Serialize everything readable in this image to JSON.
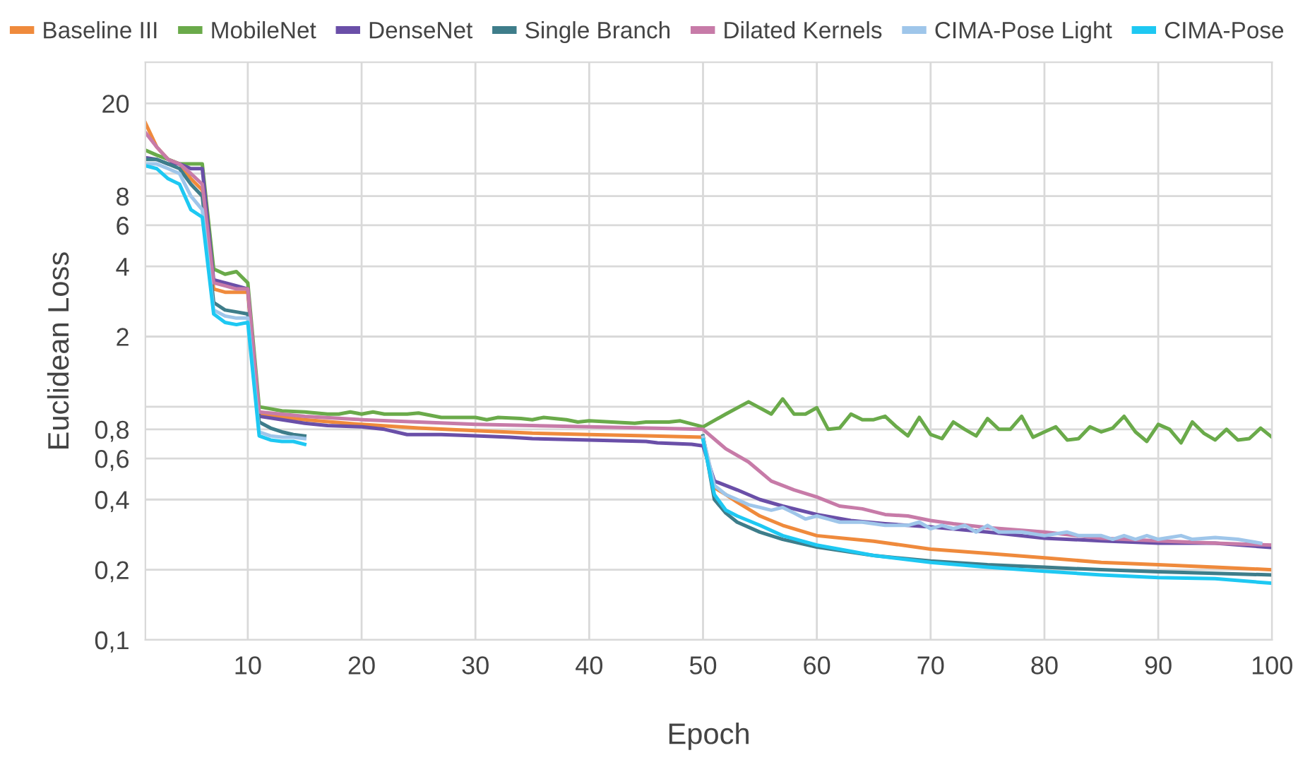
{
  "chart_data": {
    "type": "line",
    "xlabel": "Epoch",
    "ylabel": "Euclidean Loss",
    "log": "y",
    "grid": true,
    "legend": "top",
    "marker": "none",
    "line_style": "solid",
    "xlim": [
      1,
      100
    ],
    "xticks": [
      10,
      20,
      30,
      40,
      50,
      60,
      70,
      80,
      90,
      100
    ],
    "ylim": [
      0.1,
      30
    ],
    "yticks": [
      {
        "value": 0.1,
        "label": "0,1"
      },
      {
        "value": 0.2,
        "label": "0,2"
      },
      {
        "value": 0.4,
        "label": "0,4"
      },
      {
        "value": 0.6,
        "label": "0,6"
      },
      {
        "value": 0.8,
        "label": "0,8"
      },
      {
        "value": 1,
        "label": null
      },
      2,
      4,
      6,
      8,
      {
        "value": 10,
        "label": null
      },
      20
    ],
    "series": [
      {
        "name": "Baseline III",
        "color": "#ef8a3c",
        "x": [
          1,
          2,
          3,
          4,
          5,
          6,
          7,
          8,
          9,
          10,
          11,
          15,
          20,
          25,
          30,
          35,
          40,
          45,
          50,
          51,
          52,
          53,
          55,
          57,
          60,
          65,
          70,
          75,
          80,
          85,
          90,
          95,
          100
        ],
        "values": [
          16.5,
          13,
          11.5,
          11,
          9.5,
          8.5,
          3.2,
          3.1,
          3.1,
          3.1,
          0.93,
          0.88,
          0.84,
          0.81,
          0.79,
          0.77,
          0.76,
          0.75,
          0.74,
          0.45,
          0.42,
          0.39,
          0.34,
          0.31,
          0.28,
          0.265,
          0.245,
          0.235,
          0.225,
          0.215,
          0.21,
          0.205,
          0.2
        ]
      },
      {
        "name": "MobileNet",
        "color": "#6aaa4a",
        "x": [
          1,
          2,
          3,
          4,
          5,
          6,
          7,
          8,
          9,
          10,
          11,
          13,
          15,
          17,
          18,
          19,
          20,
          21,
          22,
          24,
          25,
          27,
          28,
          30,
          31,
          32,
          34,
          35,
          36,
          38,
          39,
          40,
          42,
          44,
          45,
          47,
          48,
          50,
          52,
          54,
          56,
          57,
          58,
          59,
          60,
          61,
          62,
          63,
          64,
          65,
          66,
          67,
          68,
          69,
          70,
          71,
          72,
          73,
          74,
          75,
          76,
          77,
          78,
          79,
          80,
          81,
          82,
          83,
          84,
          85,
          86,
          87,
          88,
          89,
          90,
          91,
          92,
          93,
          94,
          95,
          96,
          97,
          98,
          99,
          100
        ],
        "values": [
          12.6,
          12,
          11.5,
          11,
          11,
          11,
          3.9,
          3.7,
          3.8,
          3.4,
          1.0,
          0.96,
          0.95,
          0.93,
          0.93,
          0.95,
          0.93,
          0.95,
          0.93,
          0.93,
          0.94,
          0.9,
          0.9,
          0.9,
          0.88,
          0.9,
          0.89,
          0.88,
          0.9,
          0.88,
          0.86,
          0.87,
          0.86,
          0.85,
          0.86,
          0.86,
          0.87,
          0.82,
          0.93,
          1.05,
          0.93,
          1.08,
          0.93,
          0.93,
          0.99,
          0.8,
          0.81,
          0.93,
          0.88,
          0.88,
          0.91,
          0.82,
          0.75,
          0.9,
          0.76,
          0.73,
          0.86,
          0.8,
          0.75,
          0.89,
          0.8,
          0.8,
          0.91,
          0.74,
          0.78,
          0.82,
          0.72,
          0.73,
          0.82,
          0.78,
          0.81,
          0.91,
          0.78,
          0.71,
          0.84,
          0.8,
          0.7,
          0.86,
          0.77,
          0.72,
          0.8,
          0.72,
          0.73,
          0.81,
          0.74
        ]
      },
      {
        "name": "DenseNet",
        "color": "#6a4fa8",
        "x": [
          1,
          2,
          3,
          4,
          5,
          6,
          7,
          8,
          9,
          10,
          11,
          13,
          15,
          17,
          20,
          22,
          24,
          27,
          30,
          33,
          35,
          40,
          45,
          46,
          49,
          50,
          51,
          53,
          55,
          57,
          60,
          63,
          66,
          70,
          75,
          80,
          85,
          90,
          95,
          100
        ],
        "values": [
          11.7,
          11.5,
          11,
          11,
          10.5,
          10.5,
          3.5,
          3.4,
          3.3,
          3.2,
          0.91,
          0.88,
          0.85,
          0.83,
          0.82,
          0.8,
          0.76,
          0.76,
          0.75,
          0.74,
          0.73,
          0.72,
          0.71,
          0.7,
          0.69,
          0.68,
          0.48,
          0.44,
          0.4,
          0.375,
          0.345,
          0.325,
          0.315,
          0.305,
          0.29,
          0.273,
          0.266,
          0.26,
          0.26,
          0.249
        ]
      },
      {
        "name": "Single Branch",
        "color": "#3e7d8a",
        "x": [
          1,
          2,
          3,
          4,
          5,
          6,
          7,
          8,
          9,
          10,
          11,
          12,
          13,
          14,
          15,
          16,
          50,
          51,
          52,
          53,
          55,
          57,
          60,
          65,
          70,
          75,
          80,
          85,
          90,
          95,
          100
        ],
        "values": [
          11.5,
          11.5,
          11,
          10.5,
          9,
          8,
          2.8,
          2.6,
          2.55,
          2.5,
          0.86,
          0.81,
          0.78,
          0.76,
          0.75,
          null,
          0.75,
          0.4,
          0.35,
          0.32,
          0.29,
          0.27,
          0.25,
          0.23,
          0.218,
          0.21,
          0.205,
          0.2,
          0.196,
          0.193,
          0.19
        ]
      },
      {
        "name": "Dilated Kernels",
        "color": "#c77ba8",
        "x": [
          1,
          2,
          3,
          4,
          5,
          6,
          7,
          8,
          9,
          10,
          11,
          15,
          20,
          25,
          30,
          35,
          40,
          45,
          50,
          52,
          54,
          56,
          58,
          60,
          62,
          64,
          66,
          68,
          70,
          72,
          75,
          80,
          85,
          90,
          95,
          100
        ],
        "values": [
          15,
          13,
          11.5,
          11,
          10,
          9,
          3.4,
          3.3,
          3.2,
          3.2,
          0.95,
          0.91,
          0.88,
          0.86,
          0.84,
          0.83,
          0.82,
          0.81,
          0.8,
          0.66,
          0.58,
          0.48,
          0.44,
          0.41,
          0.375,
          0.365,
          0.345,
          0.34,
          0.325,
          0.315,
          0.303,
          0.29,
          0.273,
          0.266,
          0.26,
          0.255
        ]
      },
      {
        "name": "CIMA-Pose Light",
        "color": "#9fc6ea",
        "x": [
          1,
          2,
          3,
          4,
          5,
          6,
          7,
          8,
          9,
          10,
          11,
          12,
          13,
          14,
          15,
          16,
          50,
          51,
          52,
          53,
          54,
          55,
          56,
          57,
          58,
          59,
          60,
          61,
          62,
          64,
          66,
          68,
          69,
          70,
          71,
          72,
          73,
          74,
          75,
          76,
          78,
          80,
          82,
          83,
          85,
          86,
          87,
          88,
          89,
          90,
          92,
          93,
          95,
          97,
          99
        ],
        "values": [
          11,
          11,
          10.5,
          10,
          8,
          7,
          2.6,
          2.45,
          2.4,
          2.4,
          0.78,
          0.75,
          0.74,
          0.74,
          0.73,
          null,
          0.74,
          0.46,
          0.42,
          0.4,
          0.38,
          0.37,
          0.36,
          0.37,
          0.35,
          0.33,
          0.34,
          0.33,
          0.32,
          0.32,
          0.31,
          0.31,
          0.32,
          0.3,
          0.31,
          0.3,
          0.31,
          0.29,
          0.31,
          0.29,
          0.29,
          0.28,
          0.29,
          0.28,
          0.28,
          0.27,
          0.28,
          0.27,
          0.28,
          0.27,
          0.28,
          0.27,
          0.275,
          0.27,
          0.26
        ]
      },
      {
        "name": "CIMA-Pose",
        "color": "#1ec8f2",
        "x": [
          1,
          2,
          3,
          4,
          5,
          6,
          7,
          8,
          9,
          10,
          11,
          12,
          13,
          14,
          15,
          16,
          50,
          51,
          52,
          53,
          55,
          57,
          60,
          63,
          65,
          70,
          75,
          80,
          85,
          90,
          95,
          100
        ],
        "values": [
          10.8,
          10.5,
          9.5,
          9,
          7,
          6.5,
          2.5,
          2.3,
          2.25,
          2.3,
          0.75,
          0.72,
          0.71,
          0.71,
          0.69,
          null,
          0.72,
          0.42,
          0.36,
          0.34,
          0.31,
          0.28,
          0.255,
          0.24,
          0.23,
          0.215,
          0.205,
          0.197,
          0.19,
          0.185,
          0.183,
          0.175
        ]
      }
    ]
  }
}
